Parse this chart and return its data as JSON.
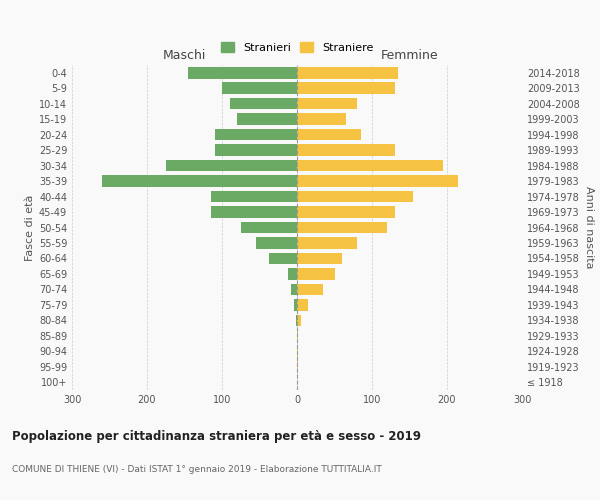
{
  "age_groups": [
    "100+",
    "95-99",
    "90-94",
    "85-89",
    "80-84",
    "75-79",
    "70-74",
    "65-69",
    "60-64",
    "55-59",
    "50-54",
    "45-49",
    "40-44",
    "35-39",
    "30-34",
    "25-29",
    "20-24",
    "15-19",
    "10-14",
    "5-9",
    "0-4"
  ],
  "birth_years": [
    "≤ 1918",
    "1919-1923",
    "1924-1928",
    "1929-1933",
    "1934-1938",
    "1939-1943",
    "1944-1948",
    "1949-1953",
    "1954-1958",
    "1959-1963",
    "1964-1968",
    "1969-1973",
    "1974-1978",
    "1979-1983",
    "1984-1988",
    "1989-1993",
    "1994-1998",
    "1999-2003",
    "2004-2008",
    "2009-2013",
    "2014-2018"
  ],
  "maschi": [
    0,
    0,
    0,
    0,
    2,
    4,
    8,
    12,
    38,
    55,
    75,
    115,
    115,
    260,
    175,
    110,
    110,
    80,
    90,
    100,
    145
  ],
  "femmine": [
    0,
    1,
    1,
    1,
    5,
    15,
    35,
    50,
    60,
    80,
    120,
    130,
    155,
    215,
    195,
    130,
    85,
    65,
    80,
    130,
    135
  ],
  "male_color": "#6aaa64",
  "female_color": "#f5c242",
  "grid_color": "#cccccc",
  "title": "Popolazione per cittadinanza straniera per età e sesso - 2019",
  "subtitle": "COMUNE DI THIENE (VI) - Dati ISTAT 1° gennaio 2019 - Elaborazione TUTTITALIA.IT",
  "legend_male": "Stranieri",
  "legend_female": "Straniere",
  "xlabel_left": "Maschi",
  "xlabel_right": "Femmine",
  "ylabel_left": "Fasce di età",
  "ylabel_right": "Anni di nascita",
  "xlim": 300,
  "background_color": "#f9f9f9"
}
